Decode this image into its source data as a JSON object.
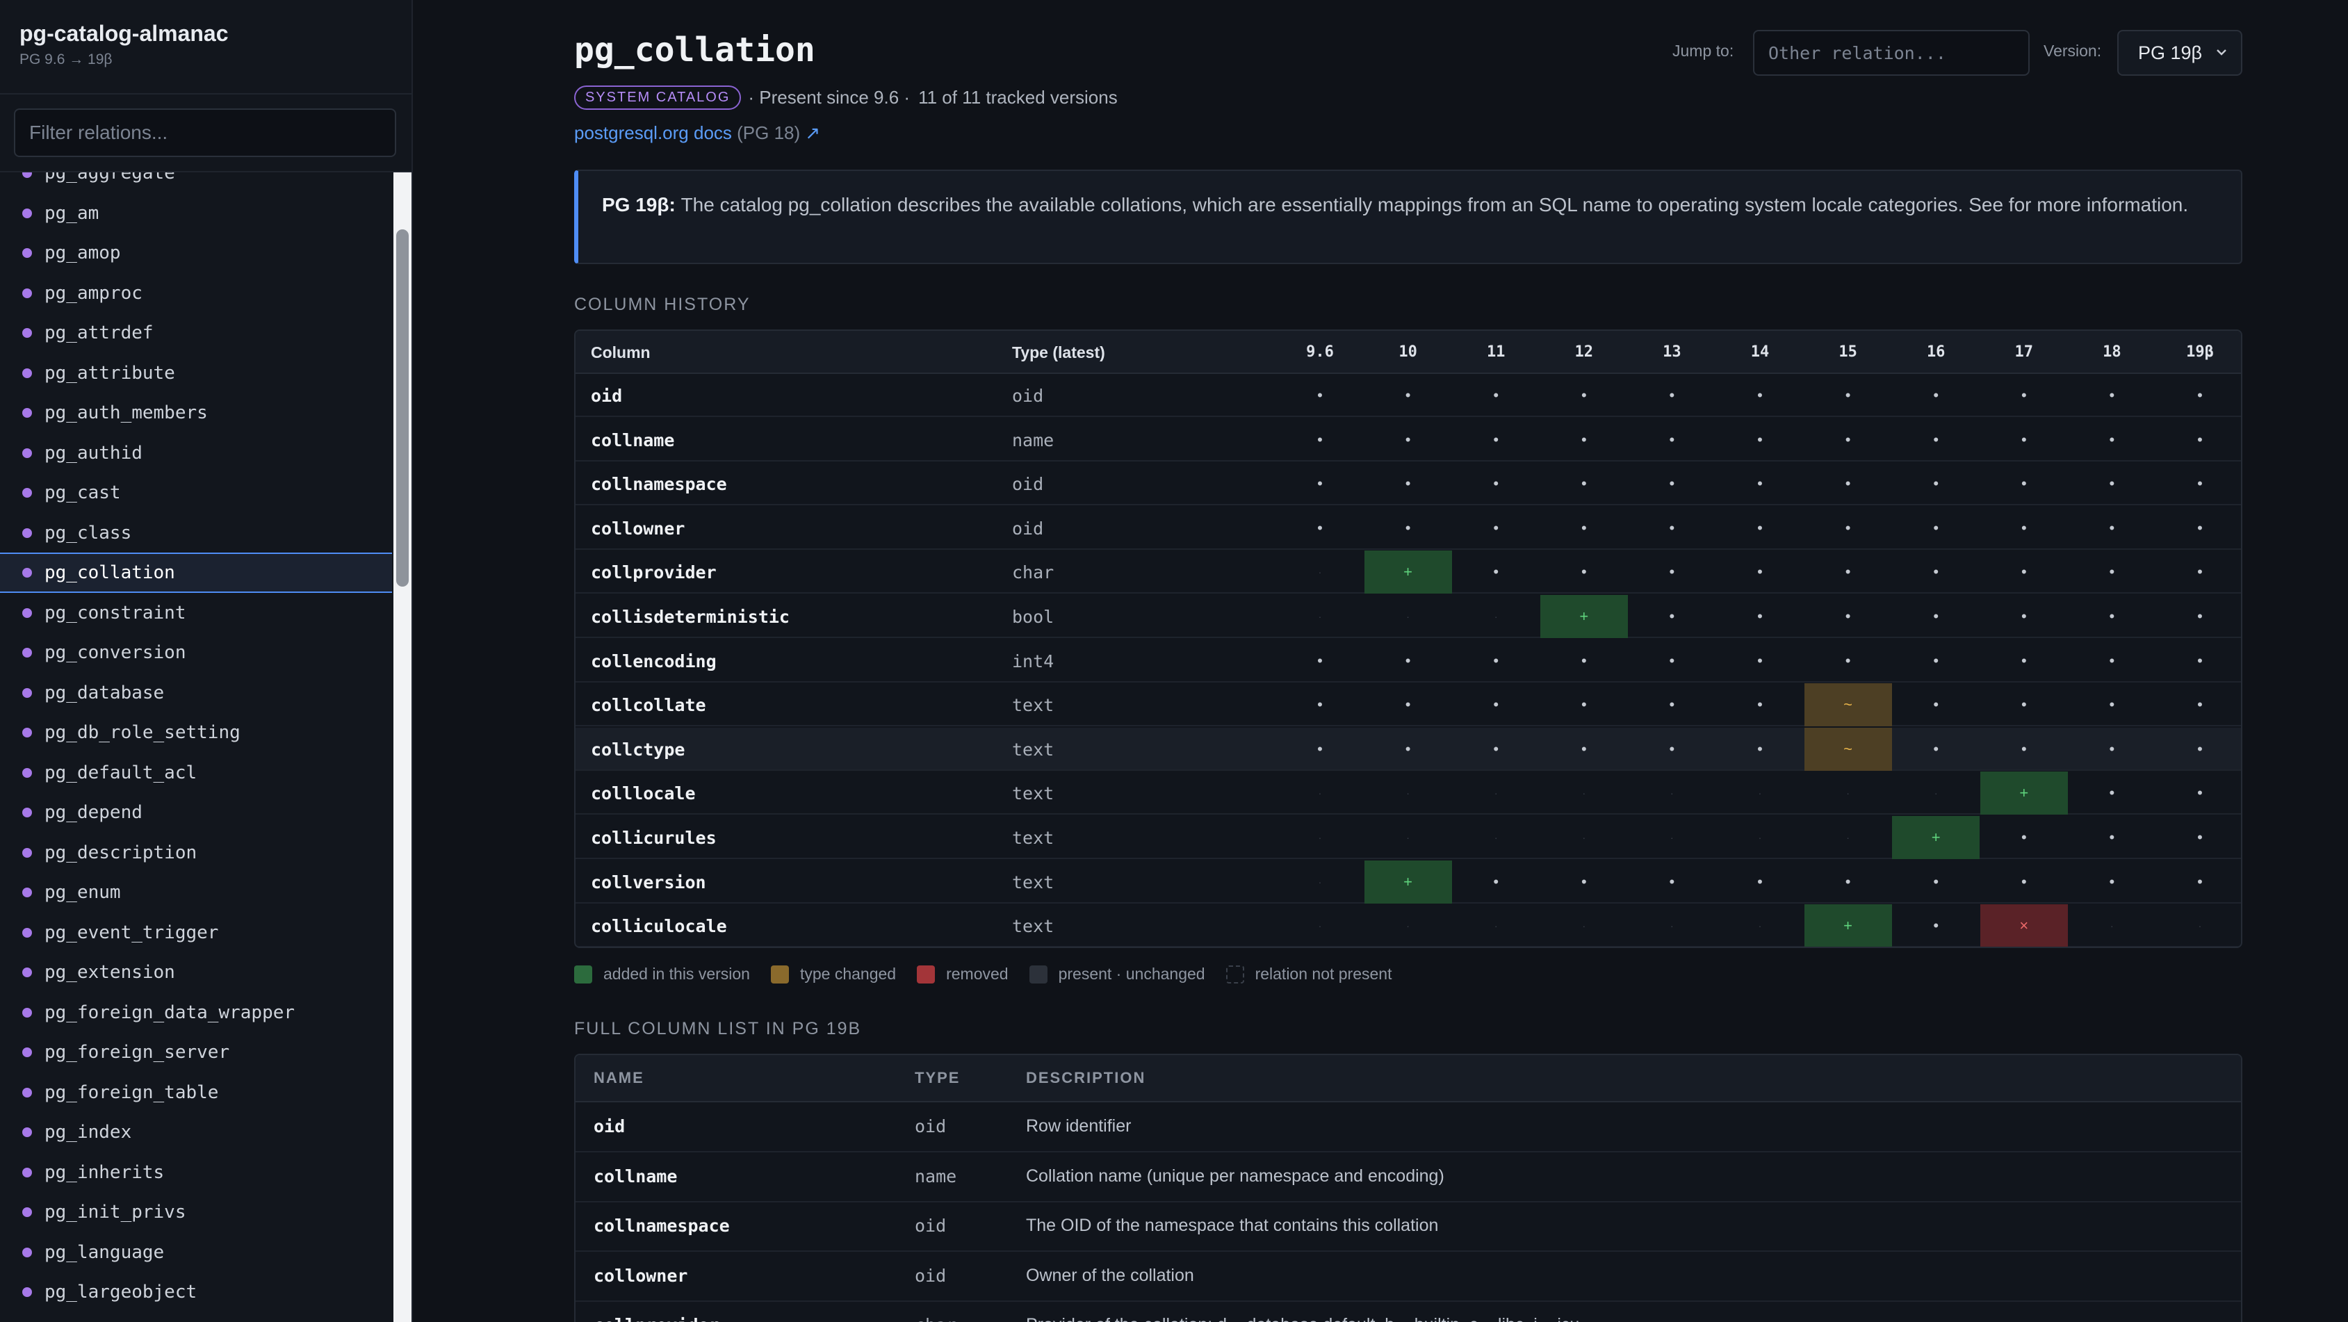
{
  "app": {
    "title": "pg-catalog-almanac",
    "subtitle": "PG 9.6 → 19β"
  },
  "sidebar": {
    "filter_placeholder": "Filter relations...",
    "items": [
      "pg_aggregate",
      "pg_am",
      "pg_amop",
      "pg_amproc",
      "pg_attrdef",
      "pg_attribute",
      "pg_auth_members",
      "pg_authid",
      "pg_cast",
      "pg_class",
      "pg_collation",
      "pg_constraint",
      "pg_conversion",
      "pg_database",
      "pg_db_role_setting",
      "pg_default_acl",
      "pg_depend",
      "pg_description",
      "pg_enum",
      "pg_event_trigger",
      "pg_extension",
      "pg_foreign_data_wrapper",
      "pg_foreign_server",
      "pg_foreign_table",
      "pg_index",
      "pg_inherits",
      "pg_init_privs",
      "pg_language",
      "pg_largeobject"
    ],
    "active_item": "pg_collation",
    "dot_color": "#a779e9"
  },
  "header": {
    "title": "pg_collation",
    "badge": "SYSTEM CATALOG",
    "present_since": "· Present since 9.6 ·",
    "tracked": "11 of 11 tracked versions",
    "docs_link": "postgresql.org docs",
    "docs_version": "(PG 18)",
    "docs_arrow": "↗",
    "jump_label": "Jump to:",
    "jump_placeholder": "Other relation...",
    "version_label": "Version:",
    "version_value": "PG 19β"
  },
  "callout": {
    "version": "PG 19β:",
    "text": " The catalog pg_collation describes the available collations, which are essentially mappings from an SQL name to operating system locale categories. See for more information."
  },
  "history": {
    "section_title": "COLUMN HISTORY",
    "col_header": "Column",
    "type_header": "Type (latest)",
    "versions": [
      "9.6",
      "10",
      "11",
      "12",
      "13",
      "14",
      "15",
      "16",
      "17",
      "18",
      "19β"
    ],
    "rows": [
      {
        "name": "oid",
        "type": "oid",
        "cells": [
          "u",
          "u",
          "u",
          "u",
          "u",
          "u",
          "u",
          "u",
          "u",
          "u",
          "u"
        ]
      },
      {
        "name": "collname",
        "type": "name",
        "cells": [
          "u",
          "u",
          "u",
          "u",
          "u",
          "u",
          "u",
          "u",
          "u",
          "u",
          "u"
        ]
      },
      {
        "name": "collnamespace",
        "type": "oid",
        "cells": [
          "u",
          "u",
          "u",
          "u",
          "u",
          "u",
          "u",
          "u",
          "u",
          "u",
          "u"
        ]
      },
      {
        "name": "collowner",
        "type": "oid",
        "cells": [
          "u",
          "u",
          "u",
          "u",
          "u",
          "u",
          "u",
          "u",
          "u",
          "u",
          "u"
        ]
      },
      {
        "name": "collprovider",
        "type": "char",
        "cells": [
          "n",
          "a",
          "u",
          "u",
          "u",
          "u",
          "u",
          "u",
          "u",
          "u",
          "u"
        ]
      },
      {
        "name": "collisdeterministic",
        "type": "bool",
        "cells": [
          "n",
          "n",
          "n",
          "a",
          "u",
          "u",
          "u",
          "u",
          "u",
          "u",
          "u"
        ]
      },
      {
        "name": "collencoding",
        "type": "int4",
        "cells": [
          "u",
          "u",
          "u",
          "u",
          "u",
          "u",
          "u",
          "u",
          "u",
          "u",
          "u"
        ]
      },
      {
        "name": "collcollate",
        "type": "text",
        "cells": [
          "u",
          "u",
          "u",
          "u",
          "u",
          "u",
          "c",
          "u",
          "u",
          "u",
          "u"
        ]
      },
      {
        "name": "collctype",
        "type": "text",
        "cells": [
          "u",
          "u",
          "u",
          "u",
          "u",
          "u",
          "c",
          "u",
          "u",
          "u",
          "u"
        ]
      },
      {
        "name": "colllocale",
        "type": "text",
        "cells": [
          "n",
          "n",
          "n",
          "n",
          "n",
          "n",
          "n",
          "n",
          "a",
          "u",
          "u"
        ]
      },
      {
        "name": "collicurules",
        "type": "text",
        "cells": [
          "n",
          "n",
          "n",
          "n",
          "n",
          "n",
          "n",
          "a",
          "u",
          "u",
          "u"
        ]
      },
      {
        "name": "collversion",
        "type": "text",
        "cells": [
          "n",
          "a",
          "u",
          "u",
          "u",
          "u",
          "u",
          "u",
          "u",
          "u",
          "u"
        ]
      },
      {
        "name": "colliculocale",
        "type": "text",
        "cells": [
          "n",
          "n",
          "n",
          "n",
          "n",
          "n",
          "a",
          "u",
          "r",
          "n",
          "n"
        ]
      }
    ],
    "highlighted_row": "collctype",
    "symbols": {
      "u": "•",
      "a": "+",
      "c": "~",
      "r": "×",
      "n": "·"
    }
  },
  "legend": [
    {
      "label": "added in this version",
      "color": "#2c6b3d"
    },
    {
      "label": "type changed",
      "color": "#8a6a2c"
    },
    {
      "label": "removed",
      "color": "#a33539"
    },
    {
      "label": "present · unchanged",
      "color": "#2c313a"
    },
    {
      "label": "relation not present",
      "color": "dashed"
    }
  ],
  "full_list": {
    "section_title": "FULL COLUMN LIST IN PG 19B",
    "headers": {
      "name": "NAME",
      "type": "TYPE",
      "description": "DESCRIPTION"
    },
    "rows": [
      {
        "name": "oid",
        "type": "oid",
        "description": "Row identifier"
      },
      {
        "name": "collname",
        "type": "name",
        "description": "Collation name (unique per namespace and encoding)"
      },
      {
        "name": "collnamespace",
        "type": "oid",
        "description": "The OID of the namespace that contains this collation"
      },
      {
        "name": "collowner",
        "type": "oid",
        "description": "Owner of the collation"
      },
      {
        "name": "collprovider",
        "type": "char",
        "description": "Provider of the collation: d = database default, b = builtin, c = libc, i = icu"
      }
    ]
  }
}
